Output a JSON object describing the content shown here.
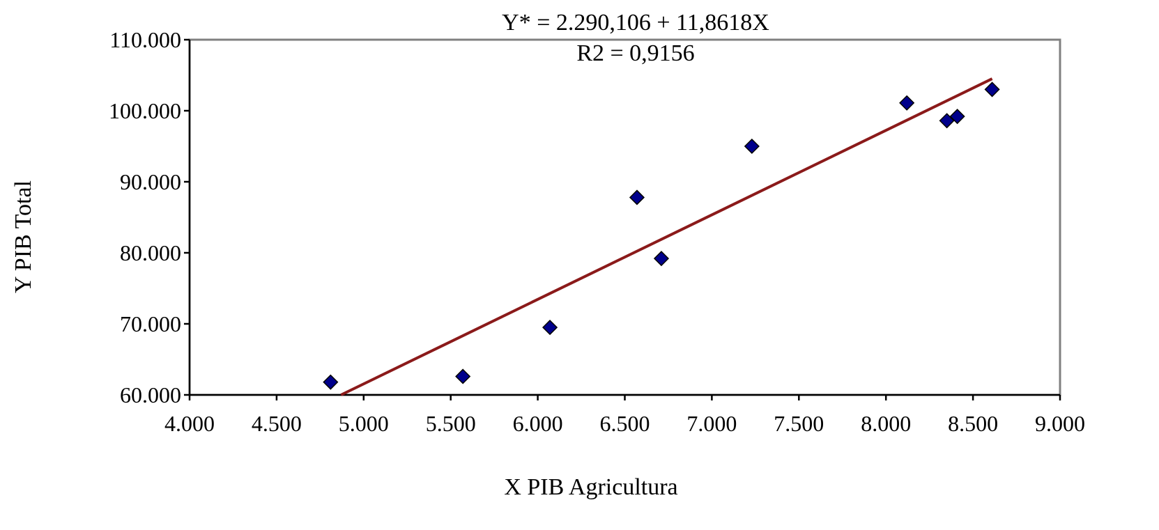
{
  "chart_data": {
    "type": "scatter",
    "title": "",
    "annotations": [
      "Y* = 2.290,106 + 11,8618X",
      "R2 = 0,9156"
    ],
    "xlabel": "X PIB Agricultura",
    "ylabel": "Y PIB Total",
    "xlim": [
      4000,
      9000
    ],
    "ylim": [
      60000,
      110000
    ],
    "xticks": [
      4000,
      4500,
      5000,
      5500,
      6000,
      6500,
      7000,
      7500,
      8000,
      8500,
      9000
    ],
    "xtick_labels": [
      "4.000",
      "4.500",
      "5.000",
      "5.500",
      "6.000",
      "6.500",
      "7.000",
      "7.500",
      "8.000",
      "8.500",
      "9.000"
    ],
    "yticks": [
      60000,
      70000,
      80000,
      90000,
      100000,
      110000
    ],
    "ytick_labels": [
      "60.000",
      "70.000",
      "80.000",
      "90.000",
      "100.000",
      "110.000"
    ],
    "grid": false,
    "legend": "none",
    "marker": "diamond",
    "colors": {
      "points": "#00008B",
      "point_edge": "#000000",
      "trendline": "#8B1A1A",
      "frame": "#808080"
    },
    "series": [
      {
        "points": [
          [
            4810,
            61800
          ],
          [
            5570,
            62600
          ],
          [
            6070,
            69500
          ],
          [
            6570,
            87800
          ],
          [
            6710,
            79200
          ],
          [
            7230,
            95000
          ],
          [
            8120,
            101100
          ],
          [
            8350,
            98600
          ],
          [
            8410,
            99200
          ],
          [
            8610,
            103000
          ]
        ]
      }
    ],
    "trendline": {
      "x_range": [
        4870,
        8610
      ],
      "y_values": [
        60000,
        104500
      ]
    }
  }
}
